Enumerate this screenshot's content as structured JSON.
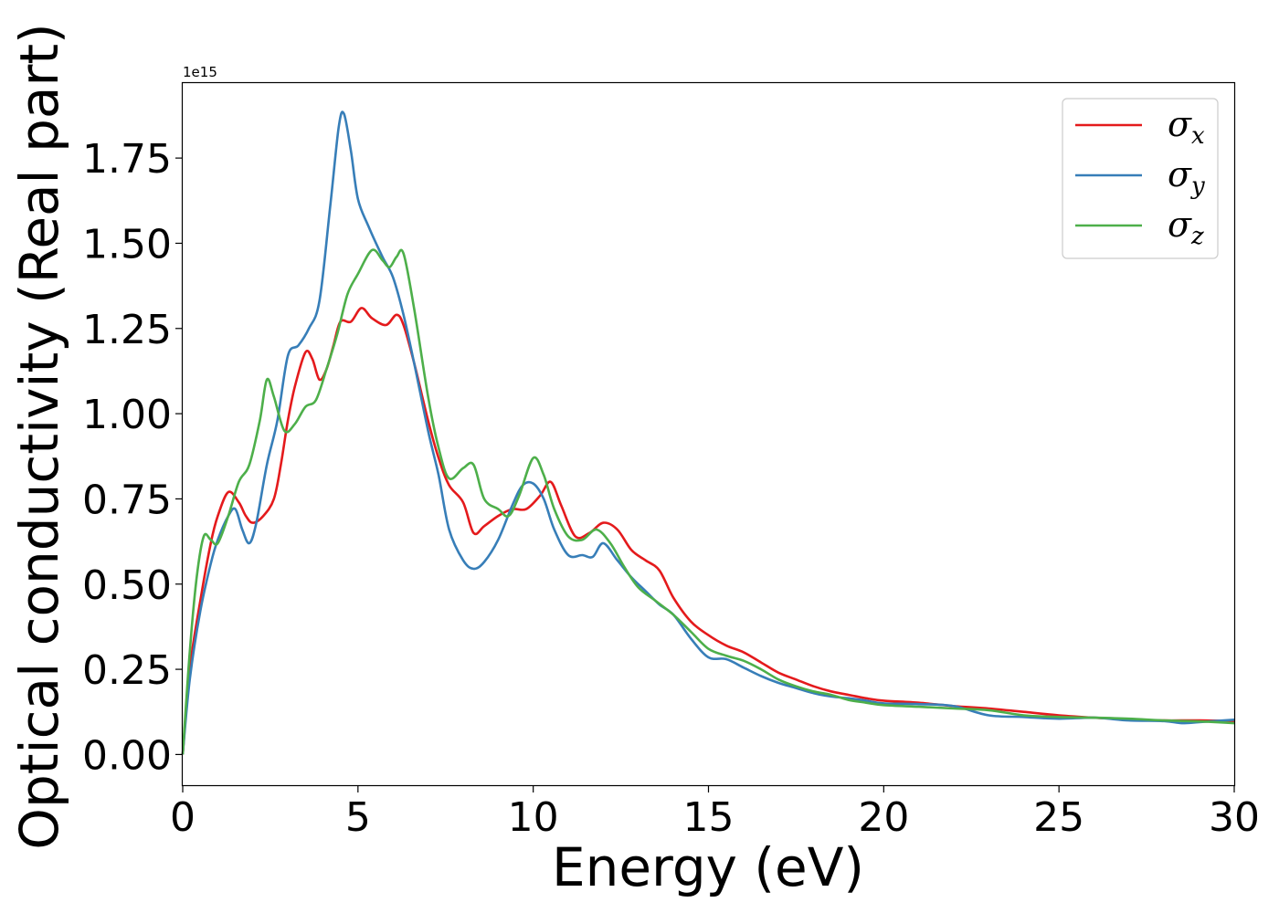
{
  "chart_data": {
    "type": "line",
    "title": "",
    "xlabel": "Energy (eV)",
    "ylabel": "Optical conductivity (Real part)",
    "y_offset_label": "1e15",
    "xlim": [
      0,
      30
    ],
    "ylim": [
      -0.09,
      1.97
    ],
    "x_ticks": [
      0,
      5,
      10,
      15,
      20,
      25,
      30
    ],
    "x_tick_labels": [
      "0",
      "5",
      "10",
      "15",
      "20",
      "25",
      "30"
    ],
    "y_ticks": [
      0,
      0.25,
      0.5,
      0.75,
      1.0,
      1.25,
      1.5,
      1.75
    ],
    "y_tick_labels": [
      "0.00",
      "0.25",
      "0.50",
      "0.75",
      "1.00",
      "1.25",
      "1.50",
      "1.75"
    ],
    "grid": false,
    "legend_position": "top-right",
    "series": [
      {
        "name": "σx",
        "legend_base": "σ",
        "legend_sub": "x",
        "color": "#e41a1c",
        "points": [
          [
            0,
            0
          ],
          [
            0.2,
            0.25
          ],
          [
            0.5,
            0.45
          ],
          [
            0.8,
            0.62
          ],
          [
            1.0,
            0.7
          ],
          [
            1.3,
            0.77
          ],
          [
            1.6,
            0.74
          ],
          [
            1.8,
            0.7
          ],
          [
            2.0,
            0.68
          ],
          [
            2.3,
            0.7
          ],
          [
            2.6,
            0.75
          ],
          [
            2.8,
            0.85
          ],
          [
            3.0,
            0.98
          ],
          [
            3.2,
            1.08
          ],
          [
            3.5,
            1.18
          ],
          [
            3.7,
            1.16
          ],
          [
            3.9,
            1.1
          ],
          [
            4.1,
            1.13
          ],
          [
            4.3,
            1.2
          ],
          [
            4.5,
            1.27
          ],
          [
            4.8,
            1.27
          ],
          [
            5.1,
            1.31
          ],
          [
            5.4,
            1.28
          ],
          [
            5.8,
            1.26
          ],
          [
            6.1,
            1.29
          ],
          [
            6.3,
            1.26
          ],
          [
            6.6,
            1.15
          ],
          [
            7.0,
            0.98
          ],
          [
            7.3,
            0.87
          ],
          [
            7.6,
            0.79
          ],
          [
            8.0,
            0.74
          ],
          [
            8.3,
            0.65
          ],
          [
            8.6,
            0.67
          ],
          [
            9.0,
            0.7
          ],
          [
            9.4,
            0.72
          ],
          [
            9.8,
            0.72
          ],
          [
            10.2,
            0.76
          ],
          [
            10.5,
            0.8
          ],
          [
            10.8,
            0.73
          ],
          [
            11.2,
            0.64
          ],
          [
            11.6,
            0.65
          ],
          [
            12.0,
            0.68
          ],
          [
            12.4,
            0.66
          ],
          [
            12.8,
            0.6
          ],
          [
            13.2,
            0.57
          ],
          [
            13.6,
            0.54
          ],
          [
            14.0,
            0.46
          ],
          [
            14.5,
            0.39
          ],
          [
            15.0,
            0.35
          ],
          [
            15.5,
            0.32
          ],
          [
            16.0,
            0.3
          ],
          [
            16.5,
            0.27
          ],
          [
            17.0,
            0.24
          ],
          [
            17.5,
            0.22
          ],
          [
            18.0,
            0.2
          ],
          [
            18.5,
            0.185
          ],
          [
            19.0,
            0.175
          ],
          [
            19.5,
            0.165
          ],
          [
            20.0,
            0.158
          ],
          [
            21.0,
            0.152
          ],
          [
            22.0,
            0.142
          ],
          [
            23.0,
            0.135
          ],
          [
            24.0,
            0.125
          ],
          [
            25.0,
            0.115
          ],
          [
            26.0,
            0.108
          ],
          [
            27.0,
            0.103
          ],
          [
            28.0,
            0.1
          ],
          [
            29.0,
            0.1
          ],
          [
            30.0,
            0.098
          ]
        ]
      },
      {
        "name": "σy",
        "legend_base": "σ",
        "legend_sub": "y",
        "color": "#377eb8",
        "points": [
          [
            0,
            0
          ],
          [
            0.2,
            0.22
          ],
          [
            0.5,
            0.42
          ],
          [
            0.8,
            0.56
          ],
          [
            1.0,
            0.63
          ],
          [
            1.3,
            0.7
          ],
          [
            1.5,
            0.72
          ],
          [
            1.7,
            0.66
          ],
          [
            1.9,
            0.62
          ],
          [
            2.1,
            0.68
          ],
          [
            2.4,
            0.85
          ],
          [
            2.7,
            0.98
          ],
          [
            3.0,
            1.17
          ],
          [
            3.3,
            1.2
          ],
          [
            3.6,
            1.25
          ],
          [
            3.9,
            1.33
          ],
          [
            4.2,
            1.6
          ],
          [
            4.45,
            1.84
          ],
          [
            4.6,
            1.88
          ],
          [
            4.8,
            1.77
          ],
          [
            5.0,
            1.63
          ],
          [
            5.3,
            1.55
          ],
          [
            5.7,
            1.46
          ],
          [
            6.0,
            1.4
          ],
          [
            6.3,
            1.29
          ],
          [
            6.6,
            1.15
          ],
          [
            7.0,
            0.95
          ],
          [
            7.3,
            0.82
          ],
          [
            7.6,
            0.66
          ],
          [
            8.0,
            0.57
          ],
          [
            8.3,
            0.545
          ],
          [
            8.6,
            0.565
          ],
          [
            9.0,
            0.63
          ],
          [
            9.4,
            0.73
          ],
          [
            9.7,
            0.79
          ],
          [
            10.0,
            0.795
          ],
          [
            10.3,
            0.75
          ],
          [
            10.6,
            0.66
          ],
          [
            11.0,
            0.585
          ],
          [
            11.4,
            0.585
          ],
          [
            11.7,
            0.58
          ],
          [
            12.0,
            0.62
          ],
          [
            12.4,
            0.57
          ],
          [
            12.8,
            0.52
          ],
          [
            13.2,
            0.48
          ],
          [
            13.6,
            0.44
          ],
          [
            14.0,
            0.41
          ],
          [
            14.5,
            0.34
          ],
          [
            15.0,
            0.285
          ],
          [
            15.5,
            0.28
          ],
          [
            16.0,
            0.255
          ],
          [
            16.5,
            0.23
          ],
          [
            17.0,
            0.21
          ],
          [
            17.5,
            0.195
          ],
          [
            18.0,
            0.18
          ],
          [
            18.5,
            0.17
          ],
          [
            19.0,
            0.165
          ],
          [
            19.5,
            0.158
          ],
          [
            20.0,
            0.15
          ],
          [
            21.0,
            0.148
          ],
          [
            22.0,
            0.142
          ],
          [
            23.0,
            0.115
          ],
          [
            24.0,
            0.11
          ],
          [
            25.0,
            0.105
          ],
          [
            26.0,
            0.108
          ],
          [
            27.0,
            0.1
          ],
          [
            28.0,
            0.098
          ],
          [
            28.5,
            0.092
          ],
          [
            29.0,
            0.095
          ],
          [
            30.0,
            0.102
          ]
        ]
      },
      {
        "name": "σz",
        "legend_base": "σ",
        "legend_sub": "z",
        "color": "#4daf4a",
        "points": [
          [
            0,
            0
          ],
          [
            0.2,
            0.3
          ],
          [
            0.4,
            0.52
          ],
          [
            0.6,
            0.64
          ],
          [
            0.8,
            0.63
          ],
          [
            1.0,
            0.62
          ],
          [
            1.3,
            0.7
          ],
          [
            1.6,
            0.8
          ],
          [
            1.9,
            0.85
          ],
          [
            2.2,
            0.98
          ],
          [
            2.4,
            1.1
          ],
          [
            2.6,
            1.05
          ],
          [
            2.9,
            0.95
          ],
          [
            3.2,
            0.97
          ],
          [
            3.5,
            1.02
          ],
          [
            3.8,
            1.04
          ],
          [
            4.1,
            1.13
          ],
          [
            4.4,
            1.23
          ],
          [
            4.7,
            1.35
          ],
          [
            5.0,
            1.41
          ],
          [
            5.4,
            1.48
          ],
          [
            5.7,
            1.45
          ],
          [
            5.9,
            1.43
          ],
          [
            6.1,
            1.46
          ],
          [
            6.3,
            1.47
          ],
          [
            6.6,
            1.31
          ],
          [
            7.0,
            1.05
          ],
          [
            7.3,
            0.9
          ],
          [
            7.6,
            0.81
          ],
          [
            8.0,
            0.84
          ],
          [
            8.3,
            0.85
          ],
          [
            8.6,
            0.75
          ],
          [
            9.0,
            0.72
          ],
          [
            9.3,
            0.7
          ],
          [
            9.6,
            0.76
          ],
          [
            10.0,
            0.87
          ],
          [
            10.3,
            0.82
          ],
          [
            10.6,
            0.72
          ],
          [
            11.0,
            0.64
          ],
          [
            11.4,
            0.63
          ],
          [
            11.8,
            0.66
          ],
          [
            12.2,
            0.62
          ],
          [
            12.6,
            0.55
          ],
          [
            13.0,
            0.49
          ],
          [
            13.5,
            0.45
          ],
          [
            14.0,
            0.41
          ],
          [
            14.5,
            0.36
          ],
          [
            15.0,
            0.31
          ],
          [
            15.5,
            0.29
          ],
          [
            16.0,
            0.275
          ],
          [
            16.5,
            0.25
          ],
          [
            17.0,
            0.22
          ],
          [
            17.5,
            0.2
          ],
          [
            18.0,
            0.185
          ],
          [
            18.5,
            0.175
          ],
          [
            19.0,
            0.16
          ],
          [
            19.5,
            0.152
          ],
          [
            20.0,
            0.145
          ],
          [
            21.0,
            0.14
          ],
          [
            22.0,
            0.135
          ],
          [
            23.0,
            0.13
          ],
          [
            24.0,
            0.115
          ],
          [
            25.0,
            0.11
          ],
          [
            26.0,
            0.108
          ],
          [
            27.0,
            0.105
          ],
          [
            28.0,
            0.1
          ],
          [
            29.0,
            0.097
          ],
          [
            30.0,
            0.092
          ]
        ]
      }
    ]
  }
}
